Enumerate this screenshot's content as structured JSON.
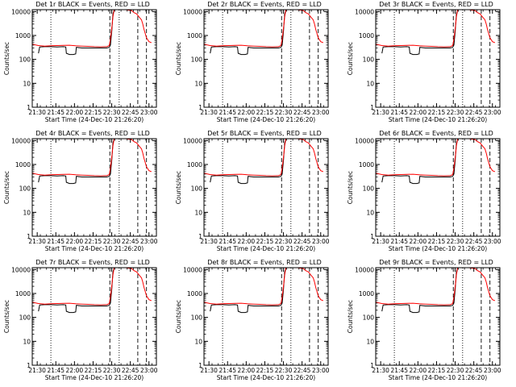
{
  "chart_data": {
    "type": "line",
    "shared": {
      "ylabel": "Counts/sec",
      "xlabel": "Start Time (24-Dec-10 21:26:20)",
      "x_ticks": [
        {
          "min": 4,
          "label": "21:30"
        },
        {
          "min": 19,
          "label": "21:45"
        },
        {
          "min": 34,
          "label": "22:00"
        },
        {
          "min": 49,
          "label": "22:15"
        },
        {
          "min": 64,
          "label": "22:30"
        },
        {
          "min": 79,
          "label": "22:45"
        },
        {
          "min": 94,
          "label": "23:00"
        }
      ],
      "y_ticks": [
        {
          "value": 1,
          "label": "1"
        },
        {
          "value": 10,
          "label": "10"
        },
        {
          "value": 100,
          "label": "100"
        },
        {
          "value": 1000,
          "label": "1000"
        },
        {
          "value": 10000,
          "label": "10000"
        }
      ],
      "xlim": [
        0,
        100
      ],
      "ylim": [
        1,
        12000
      ],
      "yscale": "log",
      "dotted_vlines_min": [
        15,
        70
      ],
      "dashed_vlines_min": [
        62.5,
        85,
        92
      ],
      "series_colors": {
        "Events": "#000000",
        "LLD": "#ff0000"
      },
      "series_names": [
        "Events",
        "LLD"
      ]
    },
    "panels": [
      {
        "title": "Det 1r BLACK = Events, RED = LLD",
        "id": "1r"
      },
      {
        "title": "Det 2r BLACK = Events, RED = LLD",
        "id": "2r"
      },
      {
        "title": "Det 3r BLACK = Events, RED = LLD",
        "id": "3r"
      },
      {
        "title": "Det 4r BLACK = Events, RED = LLD",
        "id": "4r"
      },
      {
        "title": "Det 5r BLACK = Events, RED = LLD",
        "id": "5r"
      },
      {
        "title": "Det 6r BLACK = Events, RED = LLD",
        "id": "6r"
      },
      {
        "title": "Det 7r BLACK = Events, RED = LLD",
        "id": "7r"
      },
      {
        "title": "Det 8r BLACK = Events, RED = LLD",
        "id": "8r"
      },
      {
        "title": "Det 9r BLACK = Events, RED = LLD",
        "id": "9r"
      }
    ],
    "lld_series": {
      "x": [
        0,
        5,
        10,
        15,
        20,
        25,
        30,
        35,
        40,
        45,
        50,
        55,
        60,
        62,
        63,
        64,
        65,
        66,
        67,
        68,
        69,
        70,
        75,
        80,
        82,
        84,
        86,
        88,
        89,
        90,
        92,
        94,
        96
      ],
      "y": [
        430,
        380,
        360,
        370,
        380,
        385,
        390,
        370,
        360,
        350,
        340,
        335,
        340,
        380,
        700,
        2000,
        6000,
        12000,
        12000,
        12000,
        12000,
        12000,
        12000,
        11000,
        9000,
        8000,
        6000,
        4500,
        3000,
        1800,
        800,
        550,
        500
      ]
    },
    "events_series": {
      "x": [
        5,
        6,
        10,
        15,
        20,
        25,
        27,
        27.5,
        30,
        33,
        35,
        35.5,
        40,
        45,
        50,
        55,
        60,
        62,
        63,
        64,
        65,
        66,
        70,
        75
      ],
      "y": [
        180,
        330,
        340,
        340,
        330,
        340,
        330,
        180,
        160,
        160,
        170,
        320,
        300,
        300,
        300,
        300,
        300,
        320,
        400,
        1500,
        8000,
        12000,
        12000,
        12000
      ]
    }
  }
}
